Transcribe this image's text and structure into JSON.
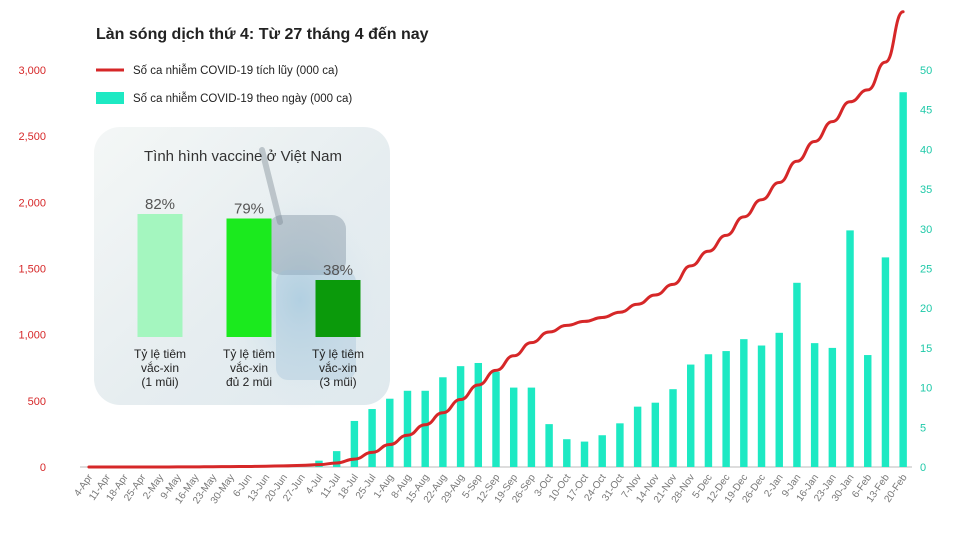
{
  "chart_data": {
    "type": "bar+line",
    "title": "Làn sóng dịch thứ 4: Từ 27 tháng 4 đến nay",
    "categories": [
      "4-Apr",
      "11-Apr",
      "18-Apr",
      "25-Apr",
      "2-May",
      "9-May",
      "16-May",
      "23-May",
      "30-May",
      "6-Jun",
      "13-Jun",
      "20-Jun",
      "27-Jun",
      "4-Jul",
      "11-Jul",
      "18-Jul",
      "25-Jul",
      "1-Aug",
      "8-Aug",
      "15-Aug",
      "22-Aug",
      "29-Aug",
      "5-Sep",
      "12-Sep",
      "19-Sep",
      "26-Sep",
      "3-Oct",
      "10-Oct",
      "17-Oct",
      "24-Oct",
      "31-Oct",
      "7-Nov",
      "14-Nov",
      "21-Nov",
      "28-Nov",
      "5-Dec",
      "12-Dec",
      "19-Dec",
      "26-Dec",
      "2-Jan",
      "9-Jan",
      "16-Jan",
      "23-Jan",
      "30-Jan",
      "6-Feb",
      "13-Feb",
      "20-Feb"
    ],
    "series": [
      {
        "name": "Số ca nhiễm COVID-19 tích lũy (000 ca)",
        "type": "line",
        "axis": "left",
        "color": "#d62728",
        "values": [
          0,
          0,
          0,
          0,
          0,
          1,
          1,
          2,
          3,
          4,
          6,
          8,
          12,
          18,
          30,
          60,
          110,
          170,
          240,
          320,
          410,
          510,
          620,
          730,
          840,
          940,
          1020,
          1070,
          1100,
          1130,
          1170,
          1230,
          1300,
          1380,
          1520,
          1630,
          1750,
          1890,
          2020,
          2150,
          2310,
          2460,
          2610,
          2760,
          2850,
          3060,
          3440
        ]
      },
      {
        "name": "Số ca nhiễm COVID-19 theo ngày (000 ca)",
        "type": "bar",
        "axis": "right",
        "color": "#1de9c3",
        "values": [
          0,
          0,
          0,
          0,
          0,
          0,
          0,
          0,
          0,
          0,
          0,
          0,
          0,
          0.8,
          2,
          5.8,
          7.3,
          8.6,
          9.6,
          9.6,
          11.3,
          12.7,
          13.1,
          12,
          10,
          10,
          5.4,
          3.5,
          3.2,
          4,
          5.5,
          7.6,
          8.1,
          9.8,
          12.9,
          14.2,
          14.6,
          16.1,
          15.3,
          16.9,
          23.2,
          15.6,
          15,
          29.8,
          14.1,
          26.4,
          47.2
        ]
      }
    ],
    "y_left": {
      "ylim": [
        0,
        3000
      ],
      "ticks": [
        "0",
        "500",
        "1,000",
        "1,500",
        "2,000",
        "2,500",
        "3,000"
      ],
      "tick_values": [
        0,
        500,
        1000,
        1500,
        2000,
        2500,
        3000
      ]
    },
    "y_right": {
      "ylim": [
        0,
        50
      ],
      "ticks": [
        "0",
        "5",
        "10",
        "15",
        "20",
        "25",
        "30",
        "35",
        "40",
        "45",
        "50"
      ],
      "tick_values": [
        0,
        5,
        10,
        15,
        20,
        25,
        30,
        35,
        40,
        45,
        50
      ]
    },
    "legend": "top-left",
    "grid": false,
    "inset": {
      "title": "Tình hình vaccine ở Việt Nam",
      "bars": [
        {
          "value": 82,
          "value_label": "82%",
          "label_lines": [
            "Tỷ lệ tiêm",
            "vắc-xin",
            "(1 mũi)"
          ],
          "color": "#a4f6bf"
        },
        {
          "value": 79,
          "value_label": "79%",
          "label_lines": [
            "Tỷ lệ tiêm",
            "vắc-xin",
            "đủ 2 mũi"
          ],
          "color": "#1bea1e"
        },
        {
          "value": 38,
          "value_label": "38%",
          "label_lines": [
            "Tỷ lệ tiêm",
            "vắc-xin",
            "(3 mũi)"
          ],
          "color": "#0b9a0b"
        }
      ]
    }
  }
}
